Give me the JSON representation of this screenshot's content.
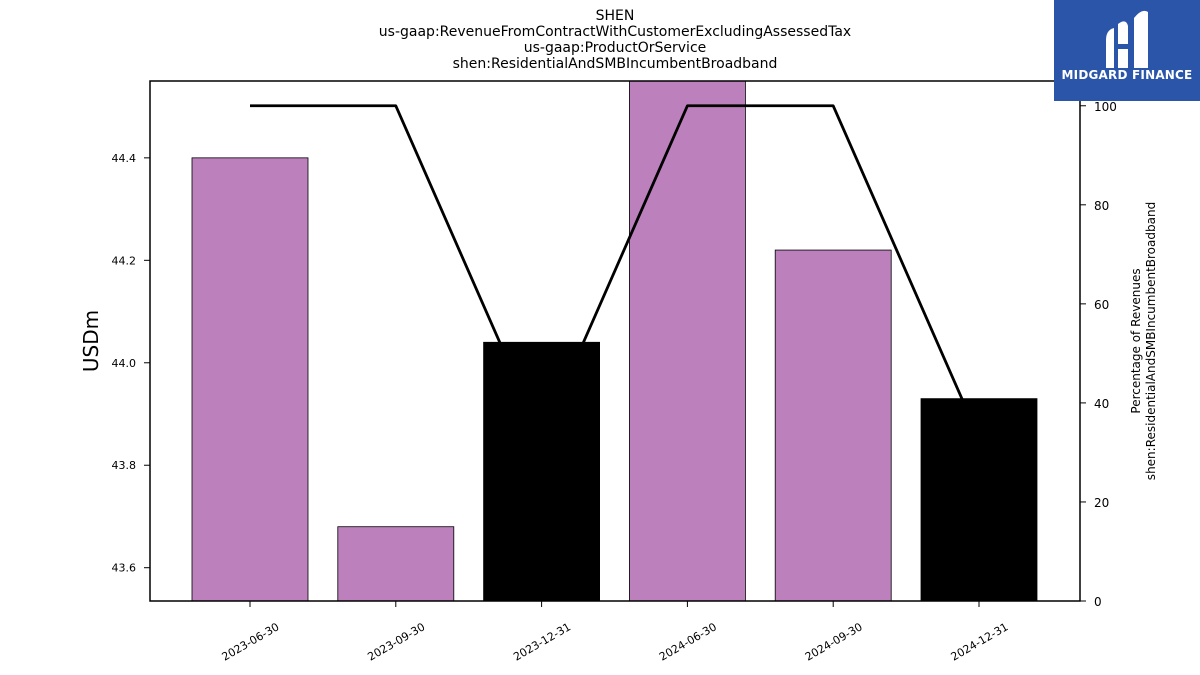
{
  "chart_data": {
    "type": "bar",
    "title_lines": [
      "SHEN",
      "us-gaap:RevenueFromContractWithCustomerExcludingAssessedTax",
      "us-gaap:ProductOrService",
      "shen:ResidentialAndSMBIncumbentBroadband"
    ],
    "categories": [
      "2023-06-30",
      "2023-09-30",
      "2023-12-31",
      "2024-06-30",
      "2024-09-30",
      "2024-12-31"
    ],
    "values": [
      44.4,
      43.68,
      44.04,
      44.55,
      44.22,
      43.93
    ],
    "bar_colors": [
      "#bc80bd",
      "#bc80bd",
      "#000000",
      "#bc80bd",
      "#bc80bd",
      "#000000"
    ],
    "ylabel": "USDm",
    "ylim": [
      43.535,
      44.55
    ],
    "yticks": [
      "43.6",
      "43.8",
      "44.0",
      "44.2",
      "44.4"
    ],
    "secondary": {
      "type": "line",
      "values": [
        100,
        100,
        33,
        100,
        100,
        33
      ],
      "ylabel_lines": [
        "Percentage of Revenues",
        "shen:ResidentialAndSMBIncumbentBroadband"
      ],
      "ylim": [
        0,
        105
      ],
      "yticks": [
        "0",
        "20",
        "40",
        "60",
        "80",
        "100"
      ],
      "color": "#000000"
    },
    "grid": false,
    "legend": "none"
  },
  "logo": {
    "text": "MIDGARD FINANCE",
    "background": "#2b55a8"
  }
}
